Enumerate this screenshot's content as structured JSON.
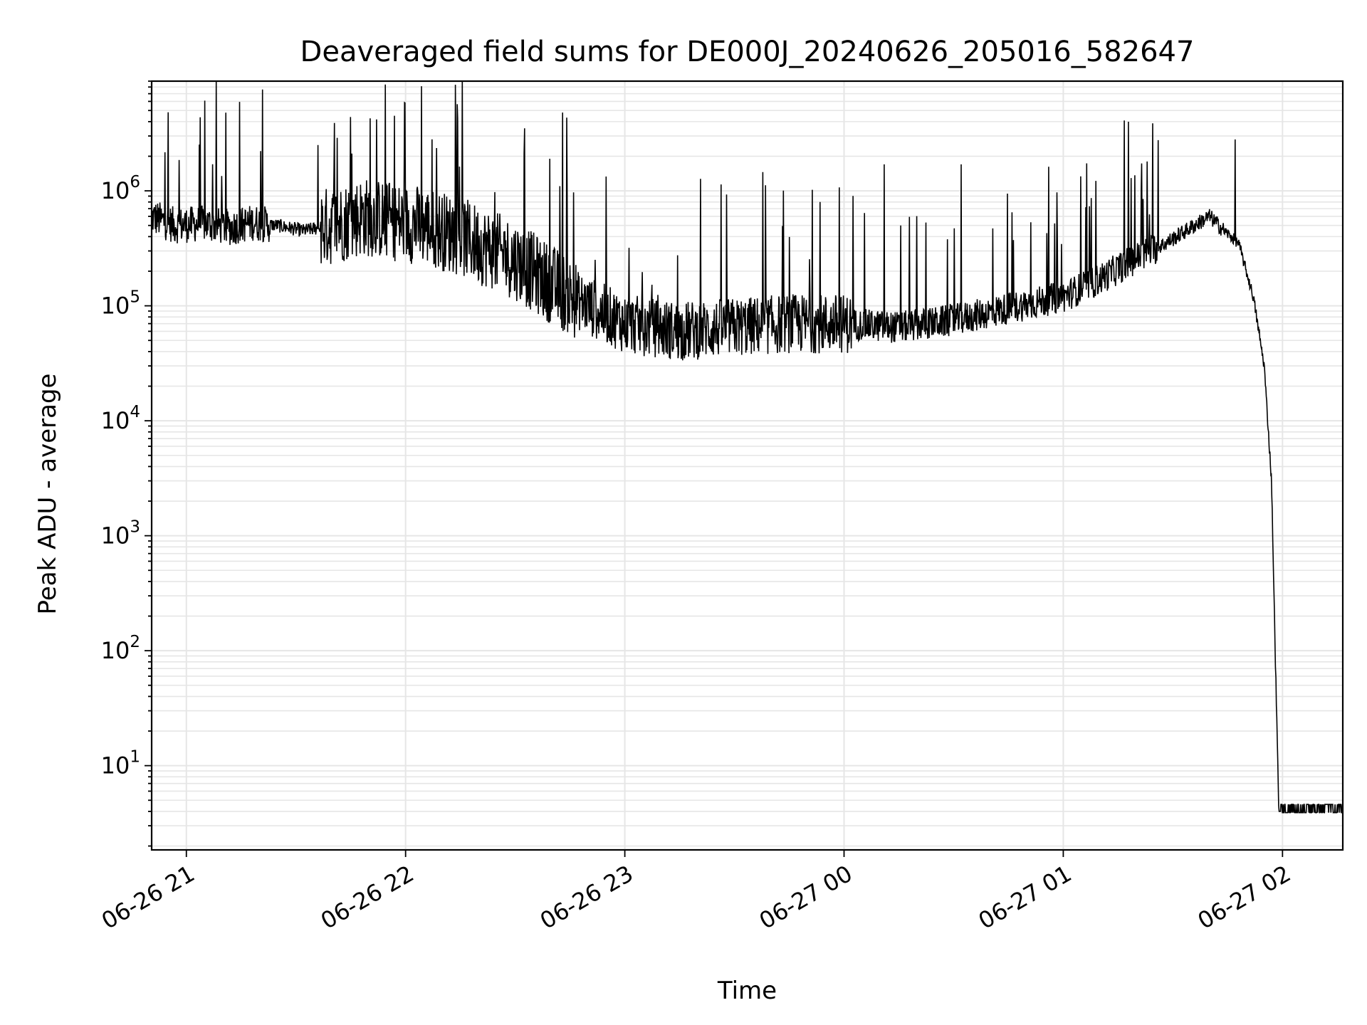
{
  "chart_data": {
    "type": "line",
    "title": "Deaveraged field sums for DE000J_20240626_205016_582647",
    "xlabel": "Time",
    "ylabel": "Peak ADU - average",
    "yscale": "log",
    "ylim": [
      1.85,
      9000000
    ],
    "xlim": [
      "2024-06-26 20:50:30",
      "2024-06-27 02:16:30"
    ],
    "grid": true,
    "legend": "none",
    "line_color": "#000000",
    "grid_color": "#e6e6e6",
    "x_ticks": [
      {
        "value": "2024-06-26 21:00",
        "label": "06-26 21"
      },
      {
        "value": "2024-06-26 22:00",
        "label": "06-26 22"
      },
      {
        "value": "2024-06-26 23:00",
        "label": "06-26 23"
      },
      {
        "value": "2024-06-27 00:00",
        "label": "06-27 00"
      },
      {
        "value": "2024-06-27 01:00",
        "label": "06-27 01"
      },
      {
        "value": "2024-06-27 02:00",
        "label": "06-27 02"
      }
    ],
    "y_ticks": [
      {
        "value": 10,
        "base": "10",
        "exp": "1"
      },
      {
        "value": 100,
        "base": "10",
        "exp": "2"
      },
      {
        "value": 1000,
        "base": "10",
        "exp": "3"
      },
      {
        "value": 10000,
        "base": "10",
        "exp": "4"
      },
      {
        "value": 100000,
        "base": "10",
        "exp": "5"
      },
      {
        "value": 1000000,
        "base": "10",
        "exp": "6"
      }
    ],
    "series": [
      {
        "x": [
          "2024-06-26 20:50",
          "2024-06-26 20:57",
          "2024-06-26 21:05",
          "2024-06-26 21:12",
          "2024-06-26 21:18",
          "2024-06-26 21:25",
          "2024-06-26 21:32",
          "2024-06-26 21:40",
          "2024-06-26 21:48",
          "2024-06-26 21:55",
          "2024-06-26 22:05",
          "2024-06-26 22:15",
          "2024-06-26 22:30",
          "2024-06-26 22:45",
          "2024-06-26 23:00",
          "2024-06-26 23:15",
          "2024-06-26 23:30",
          "2024-06-26 23:45",
          "2024-06-27 00:00",
          "2024-06-27 00:15",
          "2024-06-27 00:30",
          "2024-06-27 00:45",
          "2024-06-27 01:00",
          "2024-06-27 01:10",
          "2024-06-27 01:20",
          "2024-06-27 01:28",
          "2024-06-27 01:35",
          "2024-06-27 01:40",
          "2024-06-27 01:44",
          "2024-06-27 01:48",
          "2024-06-27 01:52",
          "2024-06-27 01:55",
          "2024-06-27 01:57",
          "2024-06-27 01:58",
          "2024-06-27 01:59",
          "2024-06-27 02:00",
          "2024-06-27 02:05",
          "2024-06-27 02:10",
          "2024-06-27 02:16"
        ],
        "y": [
          600000,
          500000,
          520000,
          480000,
          530000,
          500000,
          450000,
          500000,
          600000,
          550000,
          500000,
          400000,
          250000,
          120000,
          70000,
          60000,
          65000,
          70000,
          70000,
          65000,
          75000,
          95000,
          120000,
          170000,
          260000,
          350000,
          480000,
          600000,
          450000,
          350000,
          120000,
          30000,
          3000,
          100,
          4,
          4,
          4,
          4,
          4
        ]
      }
    ],
    "spikes": [
      {
        "x": "2024-06-26 21:36",
        "y": 2500000
      },
      {
        "x": "2024-06-26 22:43",
        "y": 4800000
      },
      {
        "x": "2024-06-27 00:11",
        "y": 1700000
      },
      {
        "x": "2024-06-27 00:32",
        "y": 1700000
      },
      {
        "x": "2024-06-27 01:23",
        "y": 1800000
      },
      {
        "x": "2024-06-27 01:47",
        "y": 2800000
      }
    ]
  }
}
